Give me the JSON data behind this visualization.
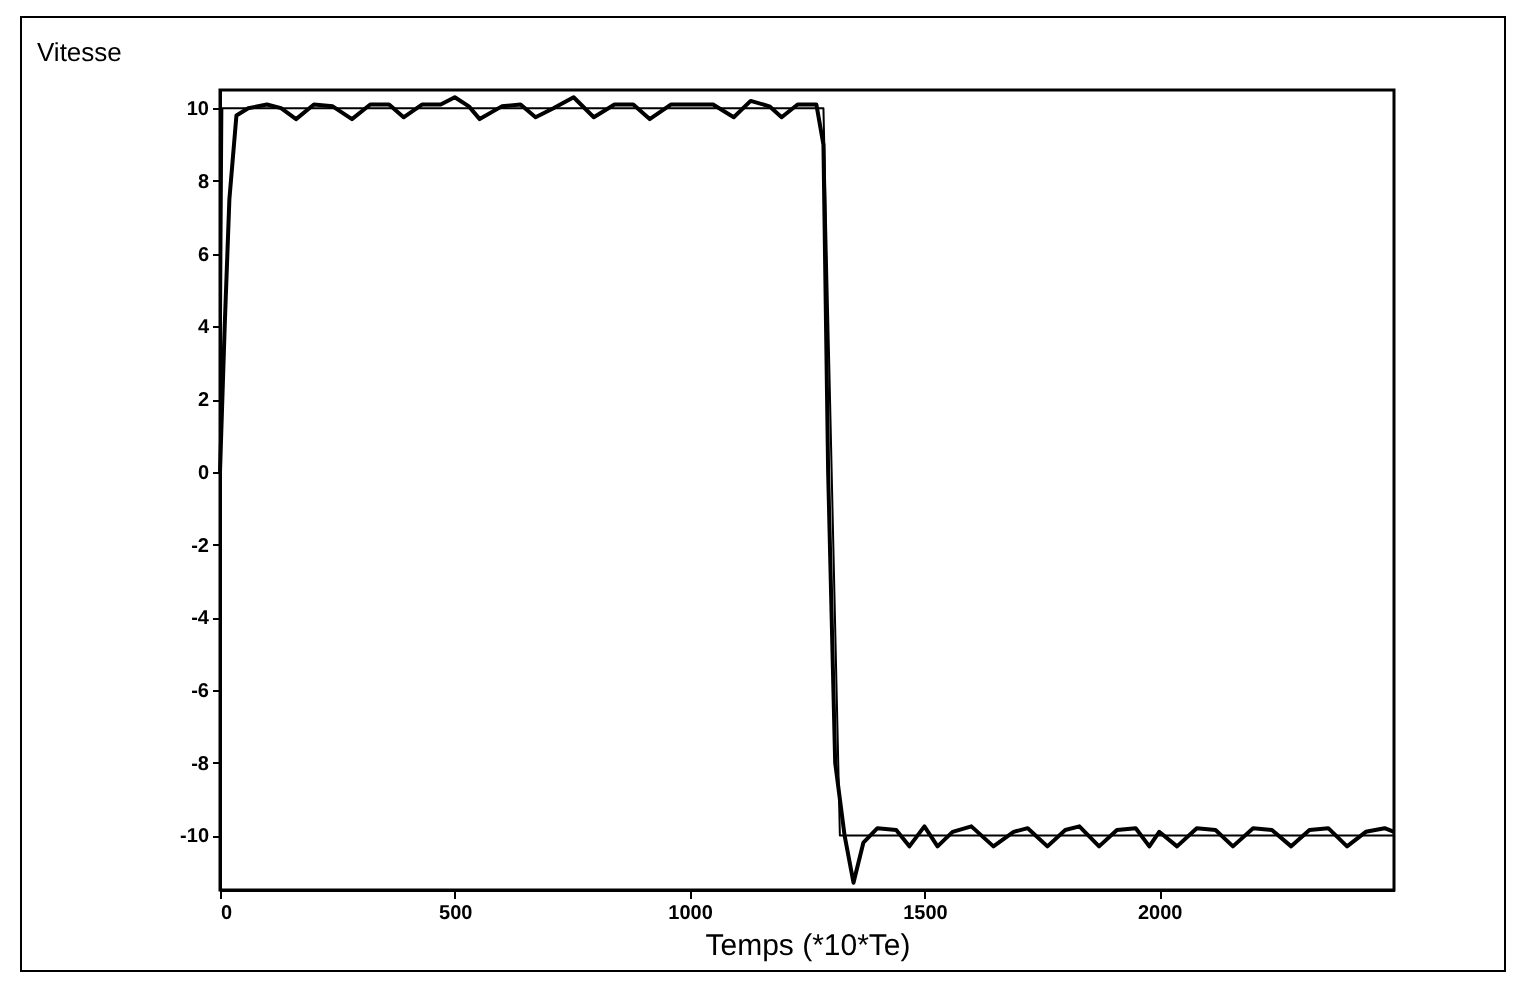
{
  "chart_data": {
    "type": "line",
    "ylabel": "Vitesse",
    "xlabel": "Temps (*10*Te)",
    "xlim": [
      0,
      2500
    ],
    "ylim": [
      -11.5,
      10.5
    ],
    "xticks": [
      0,
      500,
      1000,
      1500,
      2000
    ],
    "yticks": [
      -10,
      -8,
      -6,
      -4,
      -2,
      0,
      2,
      4,
      6,
      8,
      10
    ],
    "grid": false,
    "line_style": "solid",
    "marker": "none",
    "series": [
      {
        "color": "#000000",
        "x": [
          0,
          5,
          1285,
          1320,
          2500
        ],
        "values": [
          0,
          10,
          10,
          -10,
          -10
        ]
      },
      {
        "color": "#000000",
        "x": [
          0,
          10,
          20,
          35,
          60,
          100,
          130,
          162,
          200,
          240,
          281,
          320,
          360,
          391,
          430,
          470,
          500,
          530,
          553,
          600,
          640,
          672,
          710,
          753,
          796,
          840,
          880,
          915,
          960,
          1000,
          1050,
          1094,
          1130,
          1170,
          1196,
          1230,
          1270,
          1285,
          1295,
          1310,
          1330,
          1349,
          1370,
          1400,
          1440,
          1468,
          1500,
          1528,
          1560,
          1600,
          1647,
          1690,
          1720,
          1762,
          1800,
          1830,
          1872,
          1910,
          1950,
          1979,
          2000,
          2038,
          2080,
          2120,
          2157,
          2200,
          2240,
          2281,
          2320,
          2360,
          2400,
          2440,
          2480,
          2500
        ],
        "values": [
          0,
          4,
          7.5,
          9.8,
          10,
          10.1,
          10,
          9.7,
          10.1,
          10.05,
          9.7,
          10.1,
          10.1,
          9.75,
          10.1,
          10.1,
          10.3,
          10.05,
          9.7,
          10.05,
          10.1,
          9.75,
          10,
          10.3,
          9.75,
          10.1,
          10.1,
          9.7,
          10.1,
          10.1,
          10.1,
          9.75,
          10.2,
          10.05,
          9.75,
          10.1,
          10.1,
          9,
          0,
          -8,
          -10,
          -11.3,
          -10.2,
          -9.8,
          -9.85,
          -10.3,
          -9.75,
          -10.3,
          -9.9,
          -9.75,
          -10.3,
          -9.9,
          -9.8,
          -10.3,
          -9.85,
          -9.75,
          -10.3,
          -9.85,
          -9.8,
          -10.3,
          -9.9,
          -10.3,
          -9.8,
          -9.85,
          -10.3,
          -9.8,
          -9.85,
          -10.3,
          -9.85,
          -9.8,
          -10.3,
          -9.9,
          -9.8,
          -9.9
        ]
      }
    ]
  }
}
